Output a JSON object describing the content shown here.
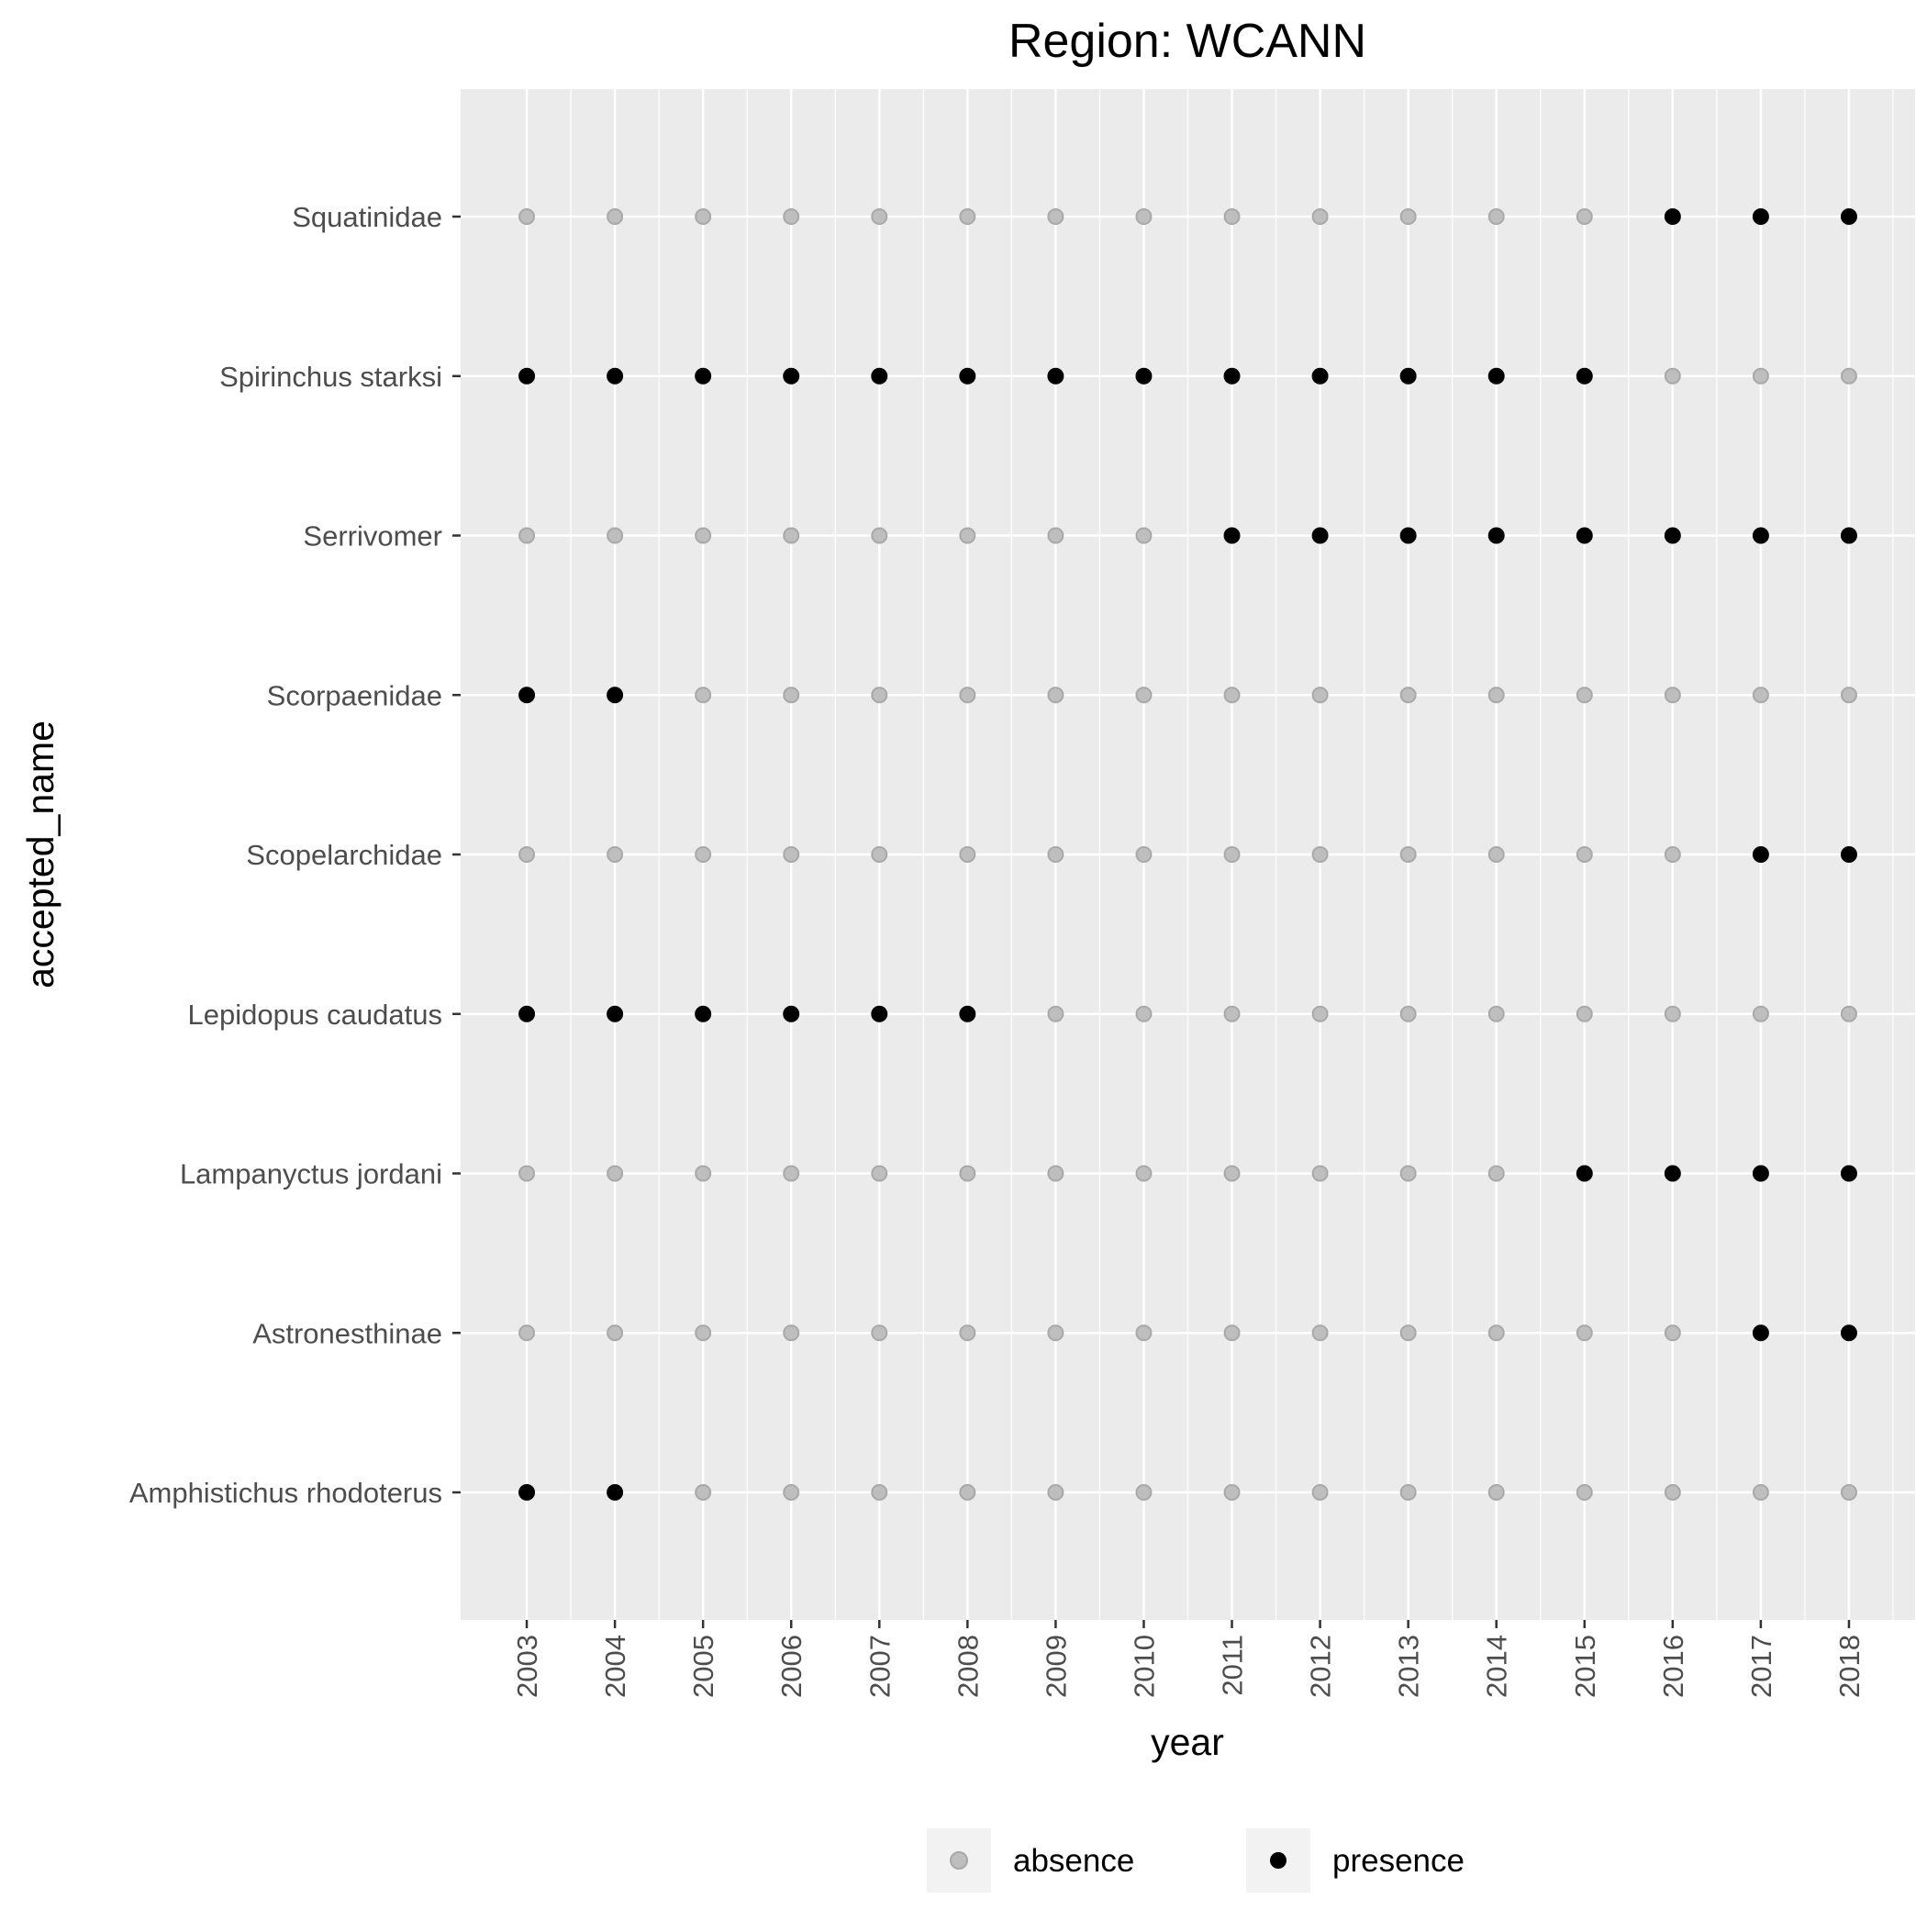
{
  "chart_data": {
    "type": "scatter",
    "title": "Region: WCANN",
    "xlabel": "year",
    "ylabel": "accepted_name",
    "x": [
      2003,
      2004,
      2005,
      2006,
      2007,
      2008,
      2009,
      2010,
      2011,
      2012,
      2013,
      2014,
      2015,
      2016,
      2017,
      2018
    ],
    "x_tick_labels": [
      "2003",
      "2004",
      "2005",
      "2006",
      "2007",
      "2008",
      "2009",
      "2010",
      "2011",
      "2012",
      "2013",
      "2014",
      "2015",
      "2016",
      "2017",
      "2018"
    ],
    "categories": [
      "Amphistichus rhodoterus",
      "Astronesthinae",
      "Lampanyctus jordani",
      "Lepidopus caudatus",
      "Scopelarchidae",
      "Scorpaenidae",
      "Serrivomer",
      "Spirinchus starksi",
      "Squatinidae"
    ],
    "presence": {
      "Amphistichus rhodoterus": [
        2003,
        2004
      ],
      "Astronesthinae": [
        2017,
        2018
      ],
      "Lampanyctus jordani": [
        2015,
        2016,
        2017,
        2018
      ],
      "Lepidopus caudatus": [
        2003,
        2004,
        2005,
        2006,
        2007,
        2008
      ],
      "Scopelarchidae": [
        2017,
        2018
      ],
      "Scorpaenidae": [
        2003,
        2004
      ],
      "Serrivomer": [
        2011,
        2012,
        2013,
        2014,
        2015,
        2016,
        2017,
        2018
      ],
      "Spirinchus starksi": [
        2003,
        2004,
        2005,
        2006,
        2007,
        2008,
        2009,
        2010,
        2011,
        2012,
        2013,
        2014,
        2015
      ],
      "Squatinidae": [
        2016,
        2017,
        2018
      ]
    },
    "series": [
      {
        "name": "absence",
        "color": "#bebebe"
      },
      {
        "name": "presence",
        "color": "#000000"
      }
    ],
    "legend_position": "bottom",
    "grid": true,
    "panel_background": "#ebebeb"
  }
}
